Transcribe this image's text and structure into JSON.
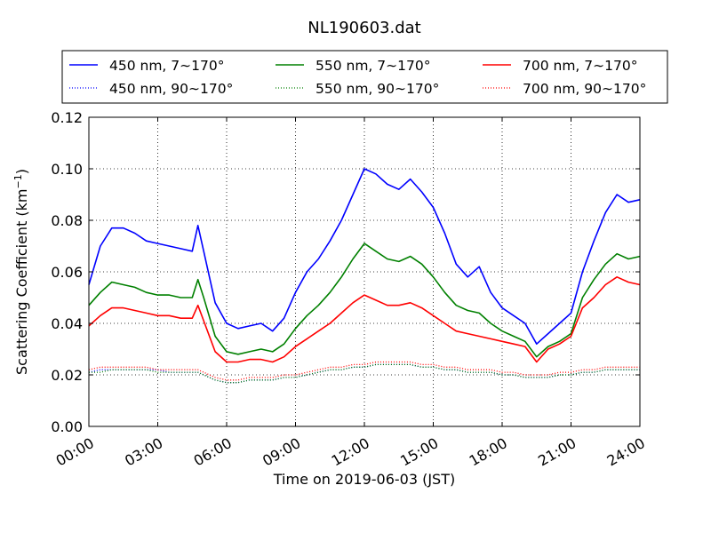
{
  "chart_data": {
    "type": "line",
    "title": "NL190603.dat",
    "xlabel": "Time on 2019-06-03 (JST)",
    "ylabel_main": "Scattering Coefficient (km",
    "ylabel_sup": "−1",
    "ylabel_close": ")",
    "xlim": [
      "00:00",
      "24:00"
    ],
    "ylim": [
      0.0,
      0.12
    ],
    "xticks": [
      "00:00",
      "03:00",
      "06:00",
      "09:00",
      "12:00",
      "15:00",
      "18:00",
      "21:00",
      "24:00"
    ],
    "yticks": [
      "0.00",
      "0.02",
      "0.04",
      "0.06",
      "0.08",
      "0.10",
      "0.12"
    ],
    "grid": true,
    "legend_position": "top",
    "x_hours": [
      0,
      0.5,
      1,
      1.5,
      2,
      2.5,
      3,
      3.5,
      4,
      4.5,
      4.75,
      5,
      5.5,
      6,
      6.5,
      7,
      7.5,
      8,
      8.5,
      9,
      9.5,
      10,
      10.5,
      11,
      11.5,
      12,
      12.5,
      13,
      13.5,
      14,
      14.5,
      15,
      15.5,
      16,
      16.5,
      17,
      17.5,
      18,
      18.5,
      19,
      19.5,
      20,
      20.5,
      21,
      21.5,
      22,
      22.5,
      23,
      23.5,
      24
    ],
    "series": [
      {
        "name": "450 nm, 7∼170°",
        "color": "#0000ff",
        "style": "solid",
        "values": [
          0.055,
          0.07,
          0.077,
          0.077,
          0.075,
          0.072,
          0.071,
          0.07,
          0.069,
          0.068,
          0.078,
          0.068,
          0.048,
          0.04,
          0.038,
          0.039,
          0.04,
          0.037,
          0.042,
          0.052,
          0.06,
          0.065,
          0.072,
          0.08,
          0.09,
          0.1,
          0.098,
          0.094,
          0.092,
          0.096,
          0.091,
          0.085,
          0.075,
          0.063,
          0.058,
          0.062,
          0.052,
          0.046,
          0.043,
          0.04,
          0.032,
          0.036,
          0.04,
          0.044,
          0.06,
          0.072,
          0.083,
          0.09,
          0.087,
          0.088
        ]
      },
      {
        "name": "450 nm, 90∼170°",
        "color": "#0000ff",
        "style": "dotted",
        "values": [
          0.021,
          0.022,
          0.022,
          0.022,
          0.022,
          0.022,
          0.022,
          0.021,
          0.021,
          0.021,
          0.021,
          0.02,
          0.018,
          0.017,
          0.017,
          0.018,
          0.018,
          0.018,
          0.019,
          0.019,
          0.02,
          0.021,
          0.022,
          0.022,
          0.023,
          0.023,
          0.024,
          0.024,
          0.024,
          0.024,
          0.023,
          0.023,
          0.022,
          0.022,
          0.021,
          0.021,
          0.021,
          0.02,
          0.02,
          0.019,
          0.019,
          0.019,
          0.02,
          0.02,
          0.021,
          0.021,
          0.022,
          0.022,
          0.022,
          0.022
        ]
      },
      {
        "name": "550 nm, 7∼170°",
        "color": "#008000",
        "style": "solid",
        "values": [
          0.047,
          0.052,
          0.056,
          0.055,
          0.054,
          0.052,
          0.051,
          0.051,
          0.05,
          0.05,
          0.057,
          0.05,
          0.035,
          0.029,
          0.028,
          0.029,
          0.03,
          0.029,
          0.032,
          0.038,
          0.043,
          0.047,
          0.052,
          0.058,
          0.065,
          0.071,
          0.068,
          0.065,
          0.064,
          0.066,
          0.063,
          0.058,
          0.052,
          0.047,
          0.045,
          0.044,
          0.04,
          0.037,
          0.035,
          0.033,
          0.027,
          0.031,
          0.033,
          0.036,
          0.05,
          0.057,
          0.063,
          0.067,
          0.065,
          0.066
        ]
      },
      {
        "name": "550 nm, 90∼170°",
        "color": "#008000",
        "style": "dotted",
        "values": [
          0.021,
          0.021,
          0.022,
          0.022,
          0.022,
          0.022,
          0.021,
          0.021,
          0.021,
          0.021,
          0.021,
          0.02,
          0.018,
          0.017,
          0.017,
          0.018,
          0.018,
          0.018,
          0.019,
          0.019,
          0.02,
          0.021,
          0.022,
          0.022,
          0.023,
          0.023,
          0.024,
          0.024,
          0.024,
          0.024,
          0.023,
          0.023,
          0.022,
          0.022,
          0.021,
          0.021,
          0.021,
          0.02,
          0.02,
          0.019,
          0.019,
          0.019,
          0.02,
          0.02,
          0.021,
          0.021,
          0.022,
          0.022,
          0.022,
          0.022
        ]
      },
      {
        "name": "700 nm, 7∼170°",
        "color": "#ff0000",
        "style": "solid",
        "values": [
          0.039,
          0.043,
          0.046,
          0.046,
          0.045,
          0.044,
          0.043,
          0.043,
          0.042,
          0.042,
          0.047,
          0.041,
          0.029,
          0.025,
          0.025,
          0.026,
          0.026,
          0.025,
          0.027,
          0.031,
          0.034,
          0.037,
          0.04,
          0.044,
          0.048,
          0.051,
          0.049,
          0.047,
          0.047,
          0.048,
          0.046,
          0.043,
          0.04,
          0.037,
          0.036,
          0.035,
          0.034,
          0.033,
          0.032,
          0.031,
          0.025,
          0.03,
          0.032,
          0.035,
          0.046,
          0.05,
          0.055,
          0.058,
          0.056,
          0.055
        ]
      },
      {
        "name": "700 nm, 90∼170°",
        "color": "#ff0000",
        "style": "dotted",
        "values": [
          0.022,
          0.023,
          0.023,
          0.023,
          0.023,
          0.023,
          0.022,
          0.022,
          0.022,
          0.022,
          0.022,
          0.021,
          0.019,
          0.018,
          0.018,
          0.019,
          0.019,
          0.019,
          0.02,
          0.02,
          0.021,
          0.022,
          0.023,
          0.023,
          0.024,
          0.024,
          0.025,
          0.025,
          0.025,
          0.025,
          0.024,
          0.024,
          0.023,
          0.023,
          0.022,
          0.022,
          0.022,
          0.021,
          0.021,
          0.02,
          0.02,
          0.02,
          0.021,
          0.021,
          0.022,
          0.022,
          0.023,
          0.023,
          0.023,
          0.023
        ]
      }
    ]
  }
}
